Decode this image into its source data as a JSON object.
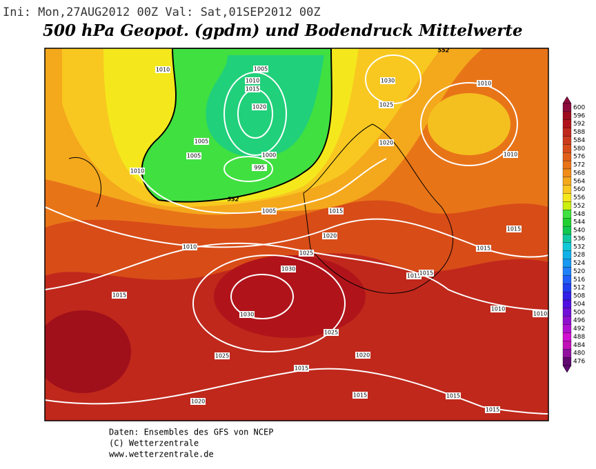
{
  "header": {
    "run_info": "Ini: Mon,27AUG2012 00Z Val: Sat,01SEP2012 00Z",
    "title": "500 hPa Geopot. (gpdm) und Bodendruck Mittelwerte"
  },
  "colorbar": {
    "labels": [
      600,
      596,
      592,
      588,
      584,
      580,
      576,
      572,
      568,
      564,
      560,
      556,
      552,
      548,
      544,
      540,
      536,
      532,
      528,
      524,
      520,
      516,
      512,
      508,
      504,
      500,
      496,
      492,
      488,
      484,
      480,
      476
    ],
    "colors": [
      "#8c0a3c",
      "#9c0c1c",
      "#b0141a",
      "#c0281c",
      "#cc3a1c",
      "#d84c18",
      "#e06018",
      "#e87418",
      "#f08c18",
      "#f4a81c",
      "#f8c820",
      "#f4e81c",
      "#ccee10",
      "#40e040",
      "#20d030",
      "#10c850",
      "#10c8a0",
      "#10c8d8",
      "#10b0e8",
      "#1898f0",
      "#2080f8",
      "#2060f8",
      "#2040f0",
      "#3020e8",
      "#5010e0",
      "#7010d8",
      "#9010d0",
      "#b010d0",
      "#d010d0",
      "#c010b8",
      "#9010a0",
      "#600870"
    ]
  },
  "isobar_labels": [
    "1010",
    "1005",
    "1010",
    "1015",
    "1020",
    "1005",
    "1005",
    "1000",
    "995",
    "1010",
    "1030",
    "1025",
    "1020",
    "1010",
    "1010",
    "1015",
    "1005",
    "1020",
    "1025",
    "1010",
    "1030",
    "1015",
    "1015",
    "1015",
    "1015",
    "1015",
    "1030",
    "1010",
    "1010",
    "1025",
    "1025",
    "1020",
    "1015",
    "1015",
    "1015",
    "1020",
    "1015"
  ],
  "contour_labels": [
    "552",
    "552"
  ],
  "footer": [
    "Daten: Ensembles des GFS von NCEP",
    "(C) Wetterzentrale",
    "www.wetterzentrale.de"
  ]
}
